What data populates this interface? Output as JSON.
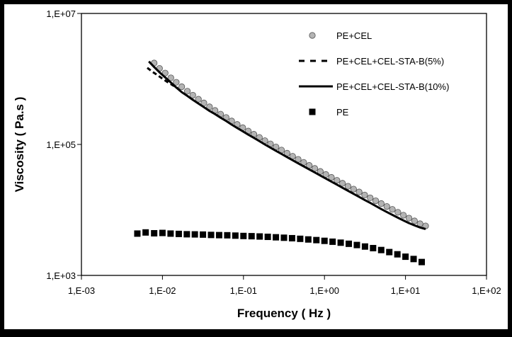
{
  "colors": {
    "frame": "#000000",
    "plot_background": "#ffffff",
    "axis": "#000000",
    "marker_gray": "#b4b4b4"
  },
  "chart_data": {
    "type": "scatter",
    "x_scale": "log",
    "y_scale": "log",
    "xlabel": "Frequency  ( Hz )",
    "ylabel": "Viscosity  ( Pa.s )",
    "xlim": [
      0.001,
      100
    ],
    "ylim": [
      1000,
      10000000
    ],
    "x_ticks": [
      {
        "value": 0.001,
        "label": "1,E-03"
      },
      {
        "value": 0.01,
        "label": "1,E-02"
      },
      {
        "value": 0.1,
        "label": "1,E-01"
      },
      {
        "value": 1,
        "label": "1,E+00"
      },
      {
        "value": 10,
        "label": "1,E+01"
      },
      {
        "value": 100,
        "label": "1,E+02"
      }
    ],
    "y_ticks": [
      {
        "value": 1000,
        "label": "1,E+03"
      },
      {
        "value": 100000,
        "label": "1,E+05"
      },
      {
        "value": 10000000,
        "label": "1,E+07"
      }
    ],
    "grid": false,
    "legend_position": "top-right-inside",
    "series": [
      {
        "name": "PE+CEL",
        "style": "gray-circle",
        "x": [
          0.0079,
          0.0092,
          0.0108,
          0.0127,
          0.0148,
          0.0173,
          0.0203,
          0.0237,
          0.0278,
          0.0325,
          0.0381,
          0.0446,
          0.0522,
          0.0611,
          0.0715,
          0.0837,
          0.098,
          0.1147,
          0.1343,
          0.1572,
          0.184,
          0.2154,
          0.2521,
          0.2951,
          0.3455,
          0.4044,
          0.4734,
          0.5541,
          0.6486,
          0.7592,
          0.8887,
          1.04,
          1.218,
          1.426,
          1.669,
          1.953,
          2.287,
          2.677,
          3.133,
          3.667,
          4.293,
          5.025,
          5.882,
          6.885,
          8.059,
          9.434,
          11.04,
          12.93,
          15.13,
          17.71
        ],
        "y": [
          1750000,
          1450000,
          1230000,
          1040000,
          890000,
          760000,
          650000,
          565000,
          490000,
          430000,
          375000,
          330000,
          290000,
          258000,
          228000,
          202000,
          180000,
          160000,
          143000,
          128000,
          114000,
          102000,
          91500,
          82000,
          73500,
          66000,
          59200,
          53200,
          47800,
          43000,
          38700,
          34800,
          31400,
          28300,
          25500,
          23000,
          20800,
          18800,
          16900,
          15300,
          13800,
          12500,
          11300,
          10200,
          9200,
          8300,
          7500,
          6800,
          6150,
          5700
        ]
      },
      {
        "name": "PE+CEL+CEL-STA-B(5%)",
        "style": "dashed-line",
        "x": [
          0.0065,
          0.0075,
          0.0087,
          0.01,
          0.0115,
          0.0133,
          0.0155
        ],
        "y": [
          1480000,
          1290000,
          1140000,
          1010000,
          900000,
          805000,
          720000
        ]
      },
      {
        "name": "PE+CEL+CEL-STA-B(10%)",
        "style": "solid-line",
        "x": [
          0.0068,
          0.0079,
          0.0092,
          0.0108,
          0.0127,
          0.0148,
          0.0173,
          0.0203,
          0.0237,
          0.0278,
          0.0325,
          0.0381,
          0.0446,
          0.0522,
          0.0611,
          0.0715,
          0.0837,
          0.098,
          0.1147,
          0.1343,
          0.1572,
          0.184,
          0.2154,
          0.2521,
          0.2951,
          0.3455,
          0.4044,
          0.4734,
          0.5541,
          0.6486,
          0.7592,
          0.8887,
          1.04,
          1.218,
          1.426,
          1.669,
          1.953,
          2.287,
          2.677,
          3.133,
          3.667,
          4.293,
          5.025,
          5.882,
          6.885,
          8.059,
          9.434,
          11.04,
          12.93,
          15.13,
          17.71
        ],
        "y": [
          1850000,
          1520000,
          1260000,
          1060000,
          880000,
          740000,
          630000,
          550000,
          480000,
          420000,
          370000,
          325000,
          290000,
          256000,
          228000,
          201000,
          178000,
          159000,
          141000,
          126000,
          112000,
          99800,
          89200,
          79800,
          71400,
          64000,
          57400,
          51500,
          46200,
          41500,
          37300,
          33500,
          30100,
          27000,
          24300,
          21800,
          19600,
          17600,
          15800,
          14200,
          12800,
          11500,
          10300,
          9300,
          8400,
          7600,
          6900,
          6300,
          5800,
          5400,
          5100
        ]
      },
      {
        "name": "PE",
        "style": "black-square",
        "x": [
          0.0049,
          0.0062,
          0.0079,
          0.01,
          0.0126,
          0.0159,
          0.02,
          0.0251,
          0.0316,
          0.0398,
          0.0501,
          0.0631,
          0.0794,
          0.1,
          0.1259,
          0.1585,
          0.1995,
          0.2512,
          0.3162,
          0.3981,
          0.5012,
          0.631,
          0.7943,
          1.0,
          1.259,
          1.585,
          1.995,
          2.512,
          3.162,
          3.981,
          5.012,
          6.31,
          7.943,
          10.0,
          12.59,
          15.85
        ],
        "y": [
          4350,
          4530,
          4400,
          4450,
          4350,
          4300,
          4250,
          4230,
          4200,
          4150,
          4120,
          4100,
          4050,
          4000,
          3970,
          3930,
          3880,
          3820,
          3760,
          3700,
          3620,
          3540,
          3460,
          3370,
          3270,
          3160,
          3040,
          2910,
          2760,
          2610,
          2440,
          2270,
          2100,
          1930,
          1780,
          1600
        ]
      }
    ]
  }
}
